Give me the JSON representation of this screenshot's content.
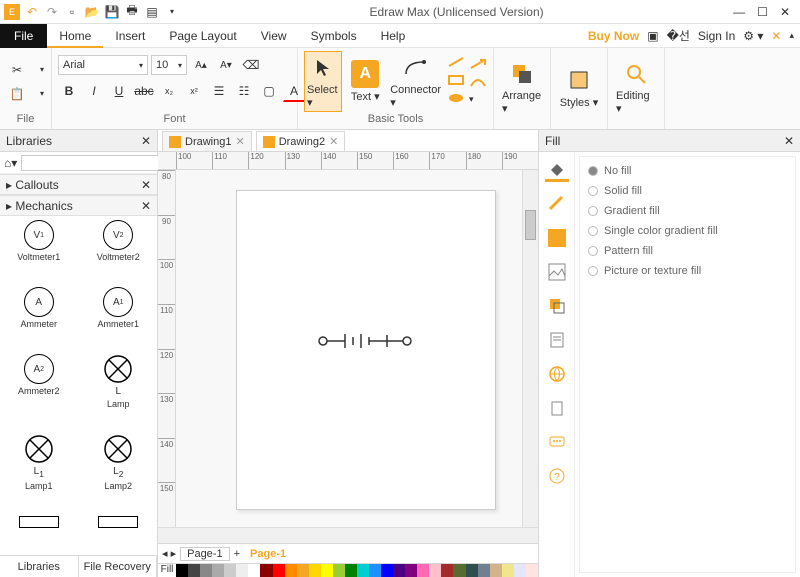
{
  "app": {
    "title": "Edraw Max (Unlicensed Version)"
  },
  "menubar": {
    "file": "File",
    "tabs": [
      "Home",
      "Insert",
      "Page Layout",
      "View",
      "Symbols",
      "Help"
    ],
    "active": 0,
    "buynow": "Buy Now",
    "signin": "Sign In"
  },
  "ribbon": {
    "groups": {
      "file": "File",
      "font": "Font",
      "basictools": "Basic Tools"
    },
    "font_name": "Arial",
    "font_size": "10",
    "select": "Select",
    "text": "Text",
    "connector": "Connector",
    "arrange": "Arrange",
    "styles": "Styles",
    "editing": "Editing"
  },
  "left": {
    "title": "Libraries",
    "sections": [
      "Callouts",
      "Mechanics"
    ],
    "shapes": [
      {
        "label": "Voltmeter1",
        "sym": "V",
        "sub": "1"
      },
      {
        "label": "Voltmeter2",
        "sym": "V",
        "sub": "2"
      },
      {
        "label": "Ammeter",
        "sym": "A",
        "sub": ""
      },
      {
        "label": "Ammeter1",
        "sym": "A",
        "sub": "1"
      },
      {
        "label": "Ammeter2",
        "sym": "A",
        "sub": "2"
      },
      {
        "label": "Lamp",
        "sym": "L",
        "sub": "",
        "lamp": true
      },
      {
        "label": "Lamp1",
        "sym": "L",
        "sub": "1",
        "lamp": true
      },
      {
        "label": "Lamp2",
        "sym": "L",
        "sub": "2",
        "lamp": true
      }
    ],
    "tabs": [
      "Libraries",
      "File Recovery"
    ]
  },
  "docs": {
    "tabs": [
      "Drawing1",
      "Drawing2"
    ],
    "active": 1
  },
  "ruler_h": [
    "100",
    "110",
    "120",
    "130",
    "140",
    "150",
    "160",
    "170",
    "180",
    "190"
  ],
  "ruler_v": [
    "80",
    "90",
    "100",
    "110",
    "120",
    "130",
    "140",
    "150"
  ],
  "pagetabs": {
    "nav": "◂ ▸",
    "p1": "Page-1",
    "add": "+",
    "p2": "Page-1"
  },
  "right": {
    "title": "Fill",
    "options": [
      "No fill",
      "Solid fill",
      "Gradient fill",
      "Single color gradient fill",
      "Pattern fill",
      "Picture or texture fill"
    ],
    "selected": 0
  },
  "palette": [
    "#000000",
    "#444444",
    "#888888",
    "#aaaaaa",
    "#cccccc",
    "#eeeeee",
    "#ffffff",
    "#8b0000",
    "#ff0000",
    "#ff8c00",
    "#f5a623",
    "#ffd700",
    "#ffff00",
    "#9acd32",
    "#008000",
    "#00ced1",
    "#1e90ff",
    "#0000ff",
    "#4b0082",
    "#800080",
    "#ff69b4",
    "#ffc0cb",
    "#a52a2a",
    "#556b2f",
    "#2f4f4f",
    "#708090",
    "#d2b48c",
    "#f0e68c",
    "#e6e6fa",
    "#ffe4e1"
  ]
}
